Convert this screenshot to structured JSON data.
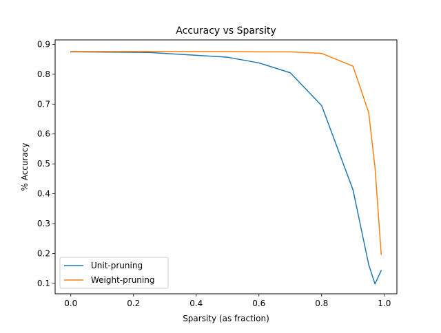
{
  "chart_data": {
    "type": "line",
    "title": "Accuracy vs Sparsity",
    "xlabel": "Sparsity (as fraction)",
    "ylabel": "% Accuracy",
    "xlim": [
      -0.05,
      1.04
    ],
    "ylim": [
      0.065,
      0.915
    ],
    "xticks": [
      0.0,
      0.2,
      0.4,
      0.6,
      0.8,
      1.0
    ],
    "xtick_labels": [
      "0.0",
      "0.2",
      "0.4",
      "0.6",
      "0.8",
      "1.0"
    ],
    "yticks": [
      0.1,
      0.2,
      0.3,
      0.4,
      0.5,
      0.6,
      0.7,
      0.8,
      0.9
    ],
    "ytick_labels": [
      "0.1",
      "0.2",
      "0.3",
      "0.4",
      "0.5",
      "0.6",
      "0.7",
      "0.8",
      "0.9"
    ],
    "grid": false,
    "legend_position": "lower-left",
    "series": [
      {
        "name": "Unit-pruning",
        "color": "#1f77b4",
        "x": [
          0.0,
          0.25,
          0.5,
          0.6,
          0.7,
          0.8,
          0.9,
          0.95,
          0.97,
          0.99
        ],
        "y": [
          0.875,
          0.873,
          0.857,
          0.838,
          0.805,
          0.695,
          0.413,
          0.163,
          0.098,
          0.143
        ]
      },
      {
        "name": "Weight-pruning",
        "color": "#ff7f0e",
        "x": [
          0.0,
          0.25,
          0.5,
          0.6,
          0.7,
          0.8,
          0.9,
          0.95,
          0.97,
          0.99
        ],
        "y": [
          0.876,
          0.876,
          0.876,
          0.875,
          0.875,
          0.87,
          0.827,
          0.672,
          0.49,
          0.197
        ]
      }
    ]
  }
}
